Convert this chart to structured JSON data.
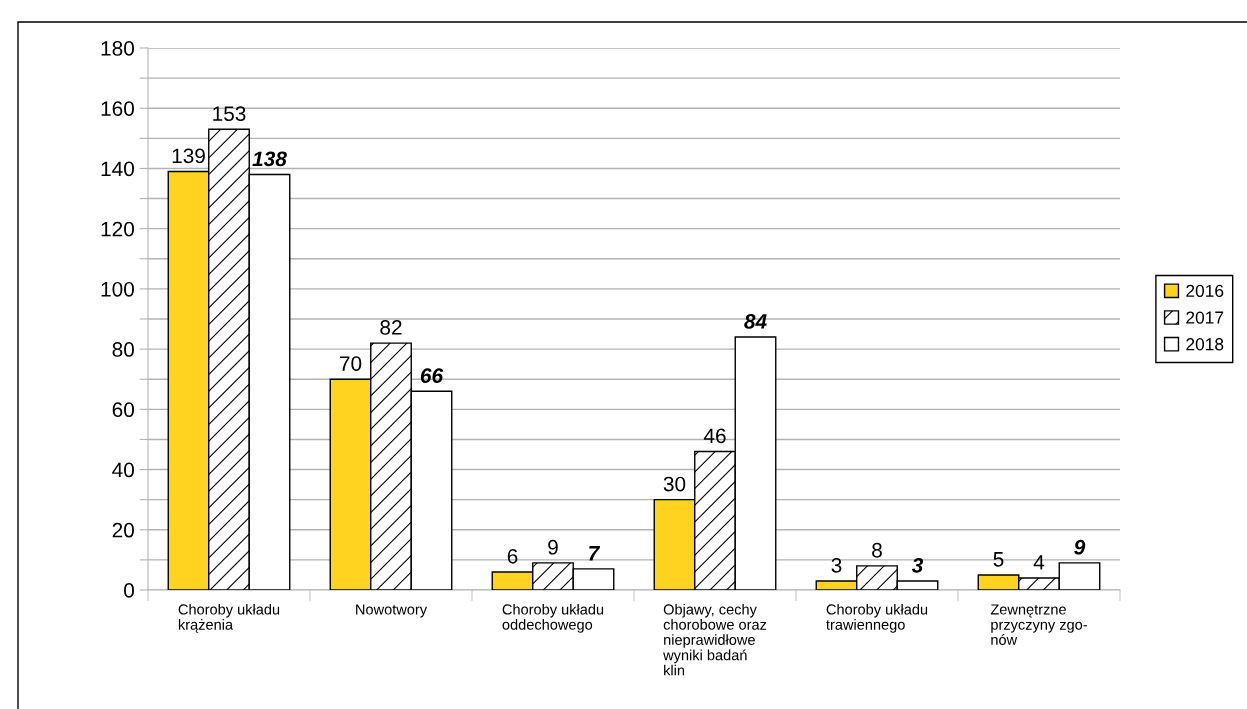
{
  "chart_data": {
    "type": "bar",
    "categories": [
      "Choroby układu\nkrążenia",
      "Nowotwory",
      "Choroby układu\noddechowego",
      "Objawy, cechy\nchorobowe oraz\nnieprawidłowe\nwyniki badań\nklin",
      "Choroby układu\ntrawiennego",
      "Zewnętrzne\nprzyczyny zgo-\nnów"
    ],
    "series": [
      {
        "name": "2016",
        "color": "#ffd320",
        "values": [
          139,
          70,
          6,
          30,
          3,
          5
        ]
      },
      {
        "name": "2017",
        "color": "#000000",
        "values": [
          153,
          82,
          9,
          46,
          8,
          4
        ]
      },
      {
        "name": "2018",
        "color": "#ffffff",
        "values": [
          138,
          66,
          7,
          84,
          3,
          9
        ]
      }
    ],
    "ylim": [
      0,
      180
    ],
    "yticks": [
      0,
      {
        "value": 10,
        "label": null
      },
      20,
      {
        "value": 30,
        "label": null
      },
      40,
      {
        "value": 50,
        "label": null
      },
      60,
      {
        "value": 70,
        "label": null
      },
      80,
      {
        "value": 90,
        "label": null
      },
      100,
      {
        "value": 110,
        "label": null
      },
      120,
      {
        "value": 130,
        "label": null
      },
      140,
      {
        "value": 150,
        "label": null
      },
      160,
      {
        "value": 170,
        "label": null
      },
      180
    ],
    "grid": "y",
    "legend": "right",
    "data_labels": true
  }
}
